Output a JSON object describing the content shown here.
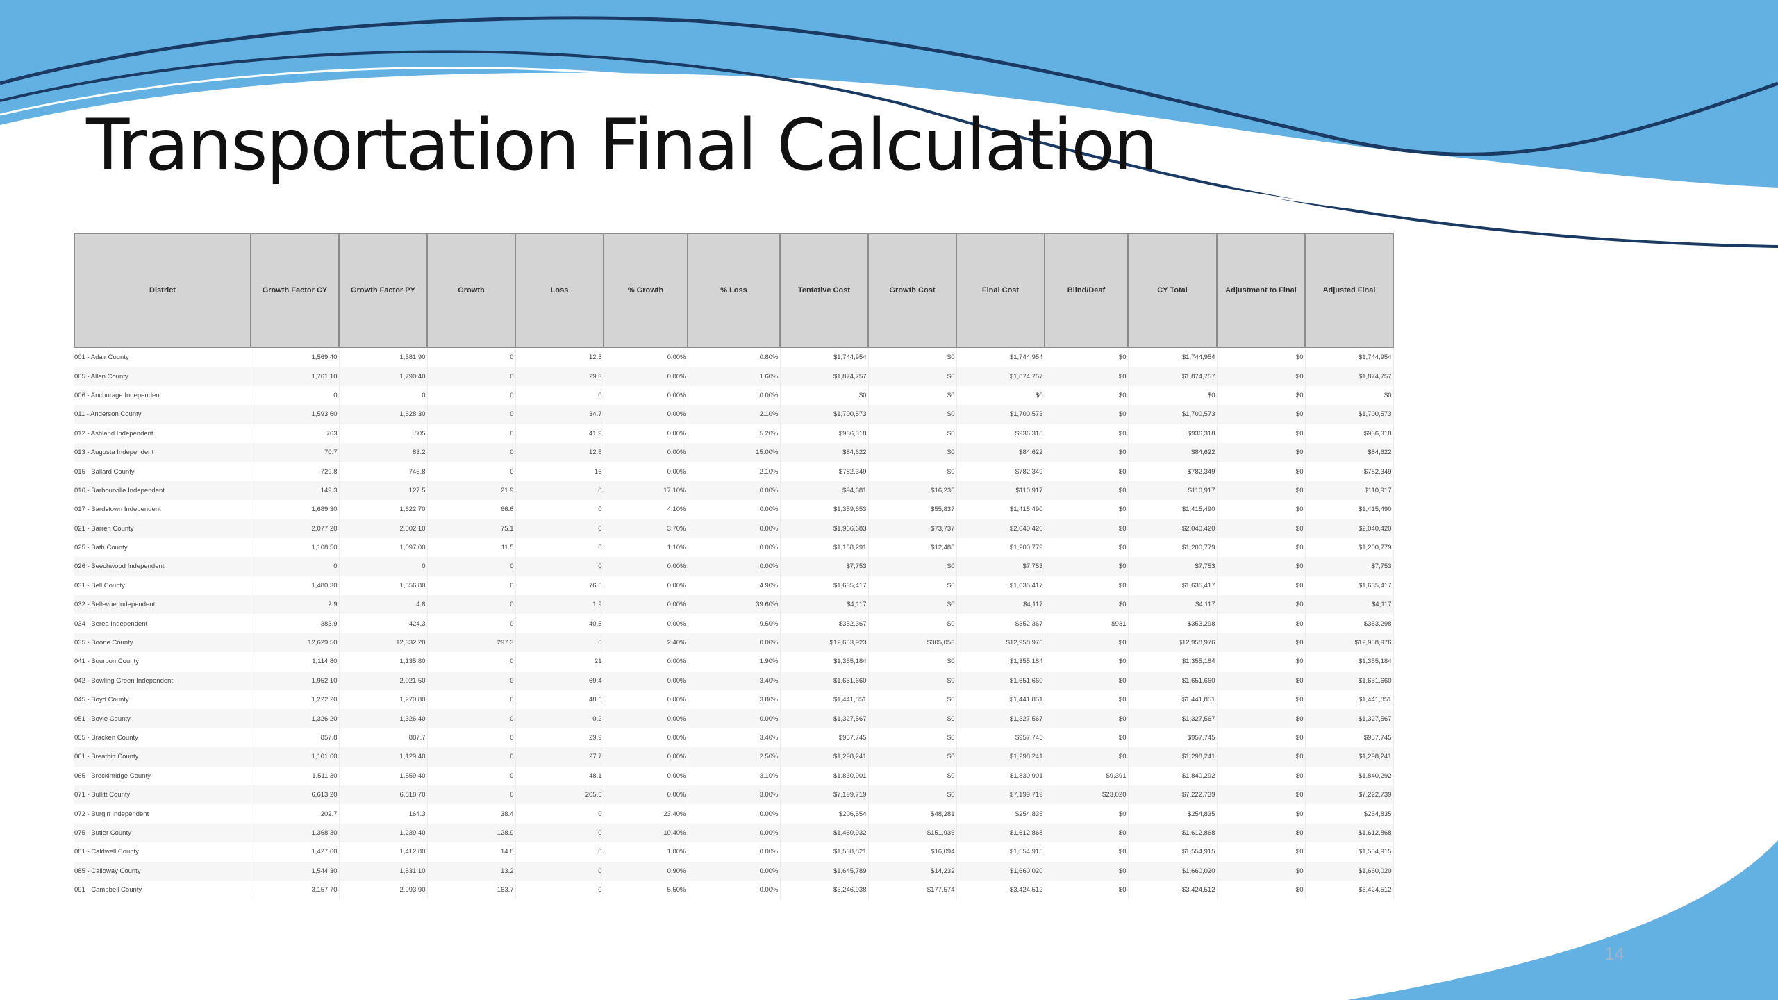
{
  "slide": {
    "title": "Transportation Final Calculation",
    "page_number": "14",
    "colors": {
      "wave_light": "#62b1e2",
      "wave_dark": "#1a3a63",
      "header_bg": "#d4d4d4"
    }
  },
  "table": {
    "headers": [
      "District",
      "Growth Factor CY",
      "Growth Factor PY",
      "Growth",
      "Loss",
      "% Growth",
      "% Loss",
      "Tentative Cost",
      "Growth Cost",
      "Final Cost",
      "Blind/Deaf",
      "CY Total",
      "Adjustment to Final",
      "Adjusted Final"
    ],
    "rows": [
      [
        "001 - Adair County",
        "1,569.40",
        "1,581.90",
        "0",
        "12.5",
        "0.00%",
        "0.80%",
        "$1,744,954",
        "$0",
        "$1,744,954",
        "$0",
        "$1,744,954",
        "$0",
        "$1,744,954"
      ],
      [
        "005 - Allen County",
        "1,761.10",
        "1,790.40",
        "0",
        "29.3",
        "0.00%",
        "1.60%",
        "$1,874,757",
        "$0",
        "$1,874,757",
        "$0",
        "$1,874,757",
        "$0",
        "$1,874,757"
      ],
      [
        "006 - Anchorage Independent",
        "0",
        "0",
        "0",
        "0",
        "0.00%",
        "0.00%",
        "$0",
        "$0",
        "$0",
        "$0",
        "$0",
        "$0",
        "$0"
      ],
      [
        "011 - Anderson County",
        "1,593.60",
        "1,628.30",
        "0",
        "34.7",
        "0.00%",
        "2.10%",
        "$1,700,573",
        "$0",
        "$1,700,573",
        "$0",
        "$1,700,573",
        "$0",
        "$1,700,573"
      ],
      [
        "012 - Ashland Independent",
        "763",
        "805",
        "0",
        "41.9",
        "0.00%",
        "5.20%",
        "$936,318",
        "$0",
        "$936,318",
        "$0",
        "$936,318",
        "$0",
        "$936,318"
      ],
      [
        "013 - Augusta Independent",
        "70.7",
        "83.2",
        "0",
        "12.5",
        "0.00%",
        "15.00%",
        "$84,622",
        "$0",
        "$84,622",
        "$0",
        "$84,622",
        "$0",
        "$84,622"
      ],
      [
        "015 - Ballard County",
        "729.8",
        "745.8",
        "0",
        "16",
        "0.00%",
        "2.10%",
        "$782,349",
        "$0",
        "$782,349",
        "$0",
        "$782,349",
        "$0",
        "$782,349"
      ],
      [
        "016 - Barbourville Independent",
        "149.3",
        "127.5",
        "21.9",
        "0",
        "17.10%",
        "0.00%",
        "$94,681",
        "$16,236",
        "$110,917",
        "$0",
        "$110,917",
        "$0",
        "$110,917"
      ],
      [
        "017 - Bardstown Independent",
        "1,689.30",
        "1,622.70",
        "66.6",
        "0",
        "4.10%",
        "0.00%",
        "$1,359,653",
        "$55,837",
        "$1,415,490",
        "$0",
        "$1,415,490",
        "$0",
        "$1,415,490"
      ],
      [
        "021 - Barren County",
        "2,077.20",
        "2,002.10",
        "75.1",
        "0",
        "3.70%",
        "0.00%",
        "$1,966,683",
        "$73,737",
        "$2,040,420",
        "$0",
        "$2,040,420",
        "$0",
        "$2,040,420"
      ],
      [
        "025 - Bath County",
        "1,108.50",
        "1,097.00",
        "11.5",
        "0",
        "1.10%",
        "0.00%",
        "$1,188,291",
        "$12,488",
        "$1,200,779",
        "$0",
        "$1,200,779",
        "$0",
        "$1,200,779"
      ],
      [
        "026 - Beechwood Independent",
        "0",
        "0",
        "0",
        "0",
        "0.00%",
        "0.00%",
        "$7,753",
        "$0",
        "$7,753",
        "$0",
        "$7,753",
        "$0",
        "$7,753"
      ],
      [
        "031 - Bell County",
        "1,480.30",
        "1,556.80",
        "0",
        "76.5",
        "0.00%",
        "4.90%",
        "$1,635,417",
        "$0",
        "$1,635,417",
        "$0",
        "$1,635,417",
        "$0",
        "$1,635,417"
      ],
      [
        "032 - Bellevue Independent",
        "2.9",
        "4.8",
        "0",
        "1.9",
        "0.00%",
        "39.60%",
        "$4,117",
        "$0",
        "$4,117",
        "$0",
        "$4,117",
        "$0",
        "$4,117"
      ],
      [
        "034 - Berea Independent",
        "383.9",
        "424.3",
        "0",
        "40.5",
        "0.00%",
        "9.50%",
        "$352,367",
        "$0",
        "$352,367",
        "$931",
        "$353,298",
        "$0",
        "$353,298"
      ],
      [
        "035 - Boone County",
        "12,629.50",
        "12,332.20",
        "297.3",
        "0",
        "2.40%",
        "0.00%",
        "$12,653,923",
        "$305,053",
        "$12,958,976",
        "$0",
        "$12,958,976",
        "$0",
        "$12,958,976"
      ],
      [
        "041 - Bourbon County",
        "1,114.80",
        "1,135.80",
        "0",
        "21",
        "0.00%",
        "1.90%",
        "$1,355,184",
        "$0",
        "$1,355,184",
        "$0",
        "$1,355,184",
        "$0",
        "$1,355,184"
      ],
      [
        "042 - Bowling Green Independent",
        "1,952.10",
        "2,021.50",
        "0",
        "69.4",
        "0.00%",
        "3.40%",
        "$1,651,660",
        "$0",
        "$1,651,660",
        "$0",
        "$1,651,660",
        "$0",
        "$1,651,660"
      ],
      [
        "045 - Boyd County",
        "1,222.20",
        "1,270.80",
        "0",
        "48.6",
        "0.00%",
        "3.80%",
        "$1,441,851",
        "$0",
        "$1,441,851",
        "$0",
        "$1,441,851",
        "$0",
        "$1,441,851"
      ],
      [
        "051 - Boyle County",
        "1,326.20",
        "1,326.40",
        "0",
        "0.2",
        "0.00%",
        "0.00%",
        "$1,327,567",
        "$0",
        "$1,327,567",
        "$0",
        "$1,327,567",
        "$0",
        "$1,327,567"
      ],
      [
        "055 - Bracken County",
        "857.8",
        "887.7",
        "0",
        "29.9",
        "0.00%",
        "3.40%",
        "$957,745",
        "$0",
        "$957,745",
        "$0",
        "$957,745",
        "$0",
        "$957,745"
      ],
      [
        "061 - Breathitt County",
        "1,101.60",
        "1,129.40",
        "0",
        "27.7",
        "0.00%",
        "2.50%",
        "$1,298,241",
        "$0",
        "$1,298,241",
        "$0",
        "$1,298,241",
        "$0",
        "$1,298,241"
      ],
      [
        "065 - Breckinridge County",
        "1,511.30",
        "1,559.40",
        "0",
        "48.1",
        "0.00%",
        "3.10%",
        "$1,830,901",
        "$0",
        "$1,830,901",
        "$9,391",
        "$1,840,292",
        "$0",
        "$1,840,292"
      ],
      [
        "071 - Bullitt County",
        "6,613.20",
        "6,818.70",
        "0",
        "205.6",
        "0.00%",
        "3.00%",
        "$7,199,719",
        "$0",
        "$7,199,719",
        "$23,020",
        "$7,222,739",
        "$0",
        "$7,222,739"
      ],
      [
        "072 - Burgin Independent",
        "202.7",
        "164.3",
        "38.4",
        "0",
        "23.40%",
        "0.00%",
        "$206,554",
        "$48,281",
        "$254,835",
        "$0",
        "$254,835",
        "$0",
        "$254,835"
      ],
      [
        "075 - Butler County",
        "1,368.30",
        "1,239.40",
        "128.9",
        "0",
        "10.40%",
        "0.00%",
        "$1,460,932",
        "$151,936",
        "$1,612,868",
        "$0",
        "$1,612,868",
        "$0",
        "$1,612,868"
      ],
      [
        "081 - Caldwell County",
        "1,427.60",
        "1,412.80",
        "14.8",
        "0",
        "1.00%",
        "0.00%",
        "$1,538,821",
        "$16,094",
        "$1,554,915",
        "$0",
        "$1,554,915",
        "$0",
        "$1,554,915"
      ],
      [
        "085 - Calloway County",
        "1,544.30",
        "1,531.10",
        "13.2",
        "0",
        "0.90%",
        "0.00%",
        "$1,645,789",
        "$14,232",
        "$1,660,020",
        "$0",
        "$1,660,020",
        "$0",
        "$1,660,020"
      ],
      [
        "091 - Campbell County",
        "3,157.70",
        "2,993.90",
        "163.7",
        "0",
        "5.50%",
        "0.00%",
        "$3,246,938",
        "$177,574",
        "$3,424,512",
        "$0",
        "$3,424,512",
        "$0",
        "$3,424,512"
      ]
    ]
  }
}
